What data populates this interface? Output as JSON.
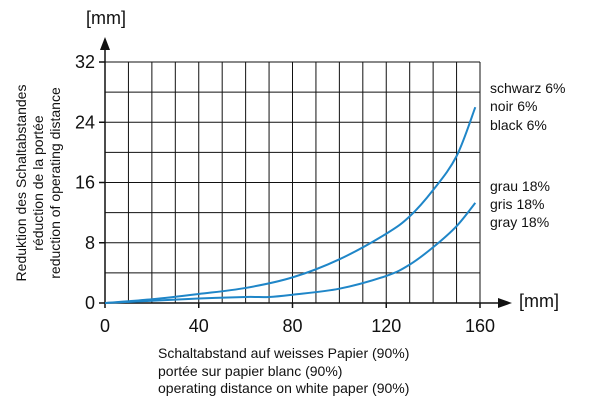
{
  "chart_data": {
    "type": "line",
    "grid": true,
    "axes": {
      "x": {
        "unit": "[mm]",
        "range": [
          0,
          160
        ],
        "ticks": [
          0,
          40,
          80,
          120,
          160
        ],
        "tick_labels": [
          "0",
          "40",
          "80",
          "120",
          "160"
        ],
        "label_lines": [
          "Schaltabstand auf weisses Papier (90%)",
          "portée sur papier blanc (90%)",
          "operating distance on white paper (90%)"
        ]
      },
      "y": {
        "unit": "[mm]",
        "range": [
          0,
          32
        ],
        "ticks": [
          0,
          8,
          16,
          24,
          32
        ],
        "tick_labels": [
          "0",
          "8",
          "16",
          "24",
          "32"
        ],
        "label_lines": [
          "Reduktion des Schaltabstandes",
          "réduction de la portée",
          "reduction of operating distance"
        ]
      }
    },
    "series": [
      {
        "label_lines": [
          "schwarz 6%",
          "noir 6%",
          "black 6%"
        ],
        "color": "#1f86c8",
        "points": [
          [
            0,
            0
          ],
          [
            20,
            0.5
          ],
          [
            40,
            1.2
          ],
          [
            60,
            2.0
          ],
          [
            80,
            3.4
          ],
          [
            100,
            5.8
          ],
          [
            120,
            9.2
          ],
          [
            130,
            11.5
          ],
          [
            140,
            15.0
          ],
          [
            150,
            19.5
          ],
          [
            158,
            26.0
          ]
        ]
      },
      {
        "label_lines": [
          "grau 18%",
          "gris 18%",
          "gray 18%"
        ],
        "color": "#1f86c8",
        "points": [
          [
            0,
            0
          ],
          [
            20,
            0.3
          ],
          [
            40,
            0.6
          ],
          [
            60,
            0.8
          ],
          [
            70,
            0.8
          ],
          [
            80,
            1.1
          ],
          [
            100,
            1.9
          ],
          [
            120,
            3.6
          ],
          [
            130,
            5.1
          ],
          [
            140,
            7.4
          ],
          [
            150,
            10.2
          ],
          [
            158,
            13.3
          ]
        ]
      }
    ]
  }
}
